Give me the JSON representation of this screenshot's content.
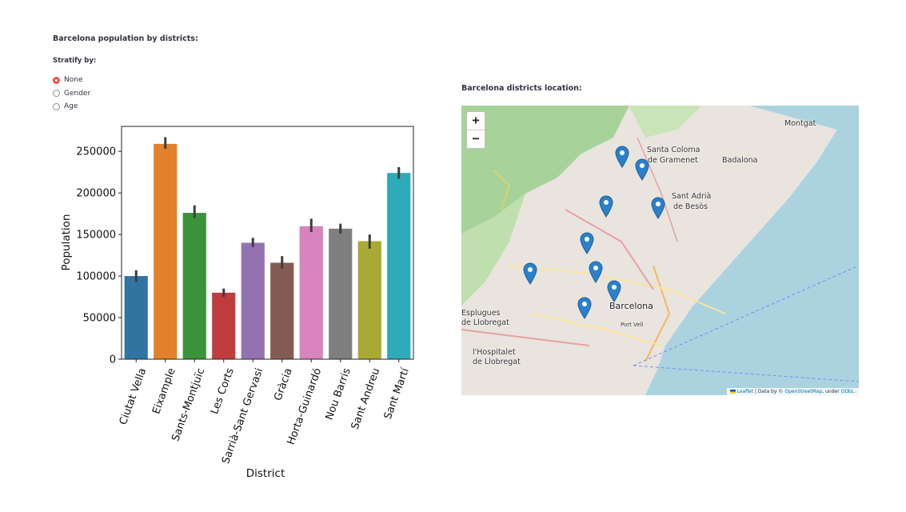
{
  "left_panel": {
    "title": "Barcelona population by districts:",
    "stratify_label": "Stratify by:",
    "options": [
      {
        "label": "None",
        "selected": true
      },
      {
        "label": "Gender",
        "selected": false
      },
      {
        "label": "Age",
        "selected": false
      }
    ]
  },
  "right_panel": {
    "title": "Barcelona districts location:",
    "zoom_in": "+",
    "zoom_out": "−",
    "places": [
      "Montgat",
      "Santa Coloma",
      "de Gramenet",
      "Badalona",
      "Sant Adrià",
      "de Besòs",
      "Barcelona",
      "Esplugues",
      "de Llobregat",
      "l'Hospitalet",
      "de Llobregat",
      "Port Vell"
    ],
    "attribution": {
      "leaflet": "Leaflet",
      "middle": "| Data by ©",
      "osm": "OpenStreetMap",
      "under": ", under",
      "odbl": "ODbL."
    },
    "marker_count": 10
  },
  "chart_data": {
    "type": "bar",
    "xlabel": "District",
    "ylabel": "Population",
    "ylim": [
      0,
      280000
    ],
    "yticks": [
      0,
      50000,
      100000,
      150000,
      200000,
      250000
    ],
    "ytick_labels": [
      "0",
      "50000",
      "100000",
      "150000",
      "200000",
      "250000"
    ],
    "categories": [
      "Ciutat Vella",
      "Eixample",
      "Sants-Montjuïc",
      "Les Corts",
      "Sarrià-Sant Gervasi",
      "Gràcia",
      "Horta-Guinardó",
      "Nou Barris",
      "Sant Andreu",
      "Sant Martí"
    ],
    "values": [
      100000,
      259000,
      176000,
      80000,
      140000,
      116000,
      160000,
      157000,
      142000,
      224000
    ],
    "error_low": [
      93000,
      253000,
      170000,
      75000,
      135000,
      109000,
      153000,
      151000,
      133000,
      217000
    ],
    "error_high": [
      107000,
      267000,
      185000,
      85000,
      146000,
      124000,
      169000,
      163000,
      150000,
      231000
    ],
    "colors": [
      "#3274a1",
      "#e1812c",
      "#3a923a",
      "#c03d3e",
      "#9372b2",
      "#845b53",
      "#d684bd",
      "#7f7f7f",
      "#a9aa35",
      "#2eabb8"
    ]
  }
}
